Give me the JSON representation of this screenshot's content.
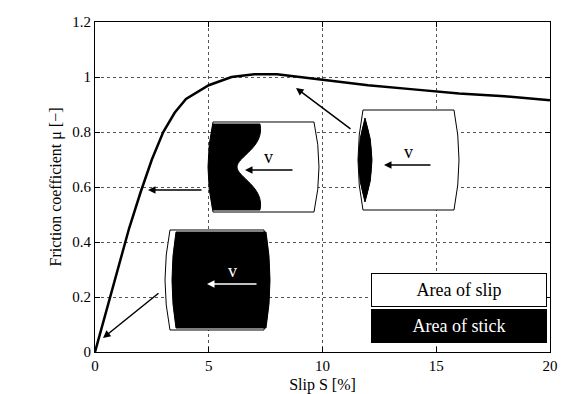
{
  "chart_data": {
    "type": "line",
    "x_label": "Slip S [%]",
    "y_label": "Friction coefficient μ [−]",
    "x": [
      0,
      0.5,
      1,
      1.5,
      2,
      2.5,
      3,
      3.5,
      4,
      5,
      6,
      7,
      8,
      9,
      10,
      12,
      14,
      16,
      18,
      20
    ],
    "values": [
      0,
      0.15,
      0.3,
      0.45,
      0.58,
      0.7,
      0.8,
      0.87,
      0.92,
      0.97,
      1.0,
      1.01,
      1.01,
      1.0,
      0.99,
      0.97,
      0.955,
      0.94,
      0.93,
      0.915
    ],
    "color": "#000000",
    "xlim": [
      0,
      20
    ],
    "ylim": [
      0,
      1.2
    ],
    "xticks": [
      0,
      5,
      10,
      15,
      20
    ],
    "yticks": [
      0,
      0.2,
      0.4,
      0.6,
      0.8,
      1,
      1.2
    ],
    "grid": true,
    "legend": "lower right",
    "legend_items": [
      {
        "name": "Area of slip",
        "color": "#ffffff"
      },
      {
        "name": "Area of stick",
        "color": "#000000"
      }
    ],
    "annotations": [
      "v",
      "v",
      "v"
    ]
  }
}
